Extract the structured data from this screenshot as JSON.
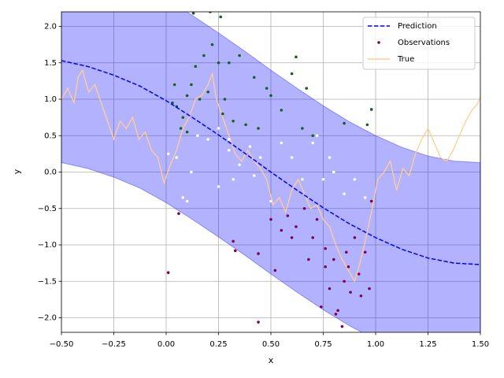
{
  "chart_data": {
    "type": "line",
    "xlabel": "x",
    "ylabel": "y",
    "xlim": [
      -0.5,
      1.5
    ],
    "ylim": [
      -2.2,
      2.2
    ],
    "xticks": [
      {
        "value": -0.5,
        "label": "−0.50"
      },
      {
        "value": -0.25,
        "label": "−0.25"
      },
      {
        "value": 0,
        "label": "0.00"
      },
      {
        "value": 0.25,
        "label": "0.25"
      },
      {
        "value": 0.5,
        "label": "0.50"
      },
      {
        "value": 0.75,
        "label": "0.75"
      },
      {
        "value": 1,
        "label": "1.00"
      },
      {
        "value": 1.25,
        "label": "1.25"
      },
      {
        "value": 1.5,
        "label": "1.50"
      }
    ],
    "yticks": [
      {
        "value": -2,
        "label": "−2.0"
      },
      {
        "value": -1.5,
        "label": "−1.5"
      },
      {
        "value": -1,
        "label": "−1.0"
      },
      {
        "value": -0.5,
        "label": "−0.5"
      },
      {
        "value": 0,
        "label": "0.0"
      },
      {
        "value": 0.5,
        "label": "0.5"
      },
      {
        "value": 1,
        "label": "1.0"
      },
      {
        "value": 1.5,
        "label": "1.5"
      },
      {
        "value": 2,
        "label": "2.0"
      }
    ],
    "grid": true,
    "legend": "upper right",
    "band": {
      "color": "#0000ff",
      "x": [
        -0.5,
        -0.375,
        -0.25,
        -0.125,
        0,
        0.125,
        0.25,
        0.375,
        0.5,
        0.625,
        0.75,
        0.875,
        1,
        1.125,
        1.25,
        1.375,
        1.5
      ],
      "upper": [
        2.93,
        2.85,
        2.73,
        2.58,
        2.38,
        2.15,
        1.91,
        1.66,
        1.4,
        1.15,
        0.91,
        0.69,
        0.5,
        0.34,
        0.22,
        0.15,
        0.13
      ],
      "lower": [
        0.13,
        0.05,
        -0.07,
        -0.22,
        -0.42,
        -0.65,
        -0.89,
        -1.14,
        -1.4,
        -1.65,
        -1.89,
        -2.11,
        -2.3,
        -2.46,
        -2.58,
        -2.65,
        -2.67
      ]
    },
    "series": [
      {
        "name": "Prediction",
        "type": "line",
        "style": "dashed",
        "color": "#0000ff",
        "x": [
          -0.5,
          -0.375,
          -0.25,
          -0.125,
          0,
          0.125,
          0.25,
          0.375,
          0.5,
          0.625,
          0.75,
          0.875,
          1,
          1.125,
          1.25,
          1.375,
          1.5
        ],
        "values": [
          1.53,
          1.45,
          1.33,
          1.18,
          0.98,
          0.75,
          0.51,
          0.26,
          0.0,
          -0.25,
          -0.49,
          -0.71,
          -0.9,
          -1.06,
          -1.18,
          -1.25,
          -1.27
        ]
      },
      {
        "name": "Observations",
        "type": "scatter",
        "color": "#800050",
        "x": [
          0.03,
          0.05,
          0.08,
          0.1,
          0.12,
          0.14,
          0.16,
          0.18,
          0.2,
          0.22,
          0.25,
          0.27,
          0.28,
          0.3,
          0.32,
          0.35,
          0.38,
          0.42,
          0.44,
          0.48,
          0.5,
          0.55,
          0.6,
          0.62,
          0.65,
          0.67,
          0.7,
          0.85,
          0.96,
          0.98,
          0.13,
          0.21,
          0.26,
          0.07,
          0.1,
          0.04,
          0.01,
          0.05,
          0.08,
          0.1,
          0.12,
          0.15,
          0.2,
          0.25,
          0.3,
          0.32,
          0.35,
          0.4,
          0.42,
          0.45,
          0.5,
          0.55,
          0.6,
          0.65,
          0.7,
          0.72,
          0.75,
          0.78,
          0.8,
          0.85,
          0.9,
          0.95,
          0.3,
          0.25,
          0.01,
          0.06,
          0.32,
          0.33,
          0.44,
          0.44,
          0.5,
          0.52,
          0.55,
          0.58,
          0.6,
          0.62,
          0.66,
          0.68,
          0.7,
          0.72,
          0.74,
          0.76,
          0.78,
          0.8,
          0.82,
          0.84,
          0.85,
          0.87,
          0.88,
          0.9,
          0.92,
          0.93,
          0.95,
          0.97,
          0.98,
          0.81,
          0.86,
          0.76
        ],
        "values": [
          0.95,
          0.9,
          0.75,
          1.05,
          1.2,
          1.45,
          1.0,
          1.6,
          1.1,
          1.75,
          1.5,
          0.8,
          1.0,
          1.5,
          0.7,
          1.6,
          0.65,
          1.3,
          0.6,
          1.15,
          1.05,
          0.85,
          1.35,
          1.58,
          0.6,
          1.15,
          0.5,
          0.67,
          0.65,
          0.86,
          2.18,
          2.2,
          2.13,
          0.6,
          0.55,
          1.2,
          0.25,
          0.2,
          -0.35,
          -0.4,
          0.0,
          0.5,
          0.45,
          -0.2,
          0.3,
          -0.1,
          0.1,
          0.35,
          -0.05,
          0.2,
          -0.4,
          0.4,
          0.2,
          -0.1,
          0.4,
          0.5,
          -0.1,
          0.2,
          0.0,
          -0.3,
          -0.1,
          -0.35,
          0.45,
          0.6,
          -1.38,
          -0.57,
          -0.95,
          -1.08,
          -1.12,
          -2.06,
          -0.65,
          -1.35,
          -0.8,
          -0.6,
          -0.9,
          -0.75,
          -0.5,
          -1.2,
          -0.9,
          -0.65,
          -1.85,
          -1.05,
          -1.6,
          -1.2,
          -1.9,
          -2.12,
          -1.5,
          -1.3,
          -1.65,
          -0.9,
          -1.4,
          -1.7,
          -1.1,
          -1.6,
          -0.4,
          -1.95,
          -1.1,
          -1.3
        ],
        "colors": [
          "#1a5e1a",
          "#1a5e1a",
          "#1a5e1a",
          "#1a5e1a",
          "#1a5e1a",
          "#1a5e1a",
          "#1a5e1a",
          "#1a5e1a",
          "#1a5e1a",
          "#1a5e1a",
          "#1a5e1a",
          "#1a5e1a",
          "#1a5e1a",
          "#1a5e1a",
          "#1a5e1a",
          "#1a5e1a",
          "#1a5e1a",
          "#1a5e1a",
          "#1a5e1a",
          "#1a5e1a",
          "#1a5e1a",
          "#1a5e1a",
          "#1a5e1a",
          "#1a5e1a",
          "#1a5e1a",
          "#1a5e1a",
          "#1a5e1a",
          "#1a5e1a",
          "#1a5e1a",
          "#1a5e1a",
          "#1a5e1a",
          "#1a5e1a",
          "#1a5e1a",
          "#1a5e1a",
          "#1a5e1a",
          "#1a5e1a",
          "#ffffff",
          "#ffffff",
          "#ffffff",
          "#ffffff",
          "#ffffff",
          "#ffffff",
          "#ffffff",
          "#ffffff",
          "#ffffff",
          "#ffffff",
          "#ffffff",
          "#ffffff",
          "#ffffff",
          "#ffffff",
          "#ffffff",
          "#ffffff",
          "#ffffff",
          "#ffffff",
          "#ffffff",
          "#ffffff",
          "#ffffff",
          "#ffffff",
          "#ffffff",
          "#ffffff",
          "#ffffff",
          "#ffffff",
          "#ffffff",
          "#ffffff",
          "#800050",
          "#800050",
          "#800050",
          "#800050",
          "#800050",
          "#800050",
          "#800050",
          "#800050",
          "#800050",
          "#800050",
          "#800050",
          "#800050",
          "#800050",
          "#800050",
          "#800050",
          "#800050",
          "#800050",
          "#800050",
          "#800050",
          "#800050",
          "#800050",
          "#800050",
          "#800050",
          "#800050",
          "#800050",
          "#800050",
          "#800050",
          "#800050",
          "#800050",
          "#800050",
          "#800050",
          "#800050",
          "#800050",
          "#800050"
        ]
      },
      {
        "name": "True",
        "type": "line",
        "color": "#ffcf8f",
        "x": [
          -0.5,
          -0.47,
          -0.44,
          -0.42,
          -0.4,
          -0.37,
          -0.34,
          -0.31,
          -0.28,
          -0.25,
          -0.22,
          -0.19,
          -0.16,
          -0.13,
          -0.1,
          -0.07,
          -0.04,
          -0.01,
          0.02,
          0.05,
          0.08,
          0.11,
          0.14,
          0.17,
          0.2,
          0.22,
          0.24,
          0.27,
          0.3,
          0.33,
          0.36,
          0.39,
          0.42,
          0.45,
          0.48,
          0.51,
          0.54,
          0.57,
          0.6,
          0.63,
          0.66,
          0.69,
          0.72,
          0.75,
          0.78,
          0.81,
          0.84,
          0.87,
          0.9,
          0.92,
          0.95,
          0.98,
          1.01,
          1.04,
          1.07,
          1.1,
          1.13,
          1.16,
          1.19,
          1.22,
          1.25,
          1.28,
          1.31,
          1.34,
          1.37,
          1.4,
          1.43,
          1.46,
          1.49,
          1.5
        ],
        "values": [
          1.0,
          1.15,
          0.95,
          1.3,
          1.4,
          1.1,
          1.2,
          0.95,
          0.7,
          0.45,
          0.7,
          0.6,
          0.75,
          0.45,
          0.55,
          0.3,
          0.2,
          -0.15,
          0.1,
          0.3,
          0.6,
          0.75,
          1.0,
          1.05,
          1.2,
          1.35,
          1.0,
          0.75,
          0.5,
          0.25,
          0.15,
          0.3,
          0.15,
          0.05,
          -0.1,
          -0.45,
          -0.35,
          -0.55,
          -0.25,
          -0.1,
          -0.3,
          -0.5,
          -0.45,
          -0.65,
          -0.75,
          -1.0,
          -1.2,
          -1.35,
          -1.5,
          -1.3,
          -0.95,
          -0.55,
          -0.1,
          0.0,
          0.15,
          -0.25,
          0.05,
          -0.05,
          0.25,
          0.45,
          0.6,
          0.4,
          0.2,
          0.15,
          0.3,
          0.5,
          0.7,
          0.85,
          0.95,
          1.05
        ]
      }
    ]
  }
}
